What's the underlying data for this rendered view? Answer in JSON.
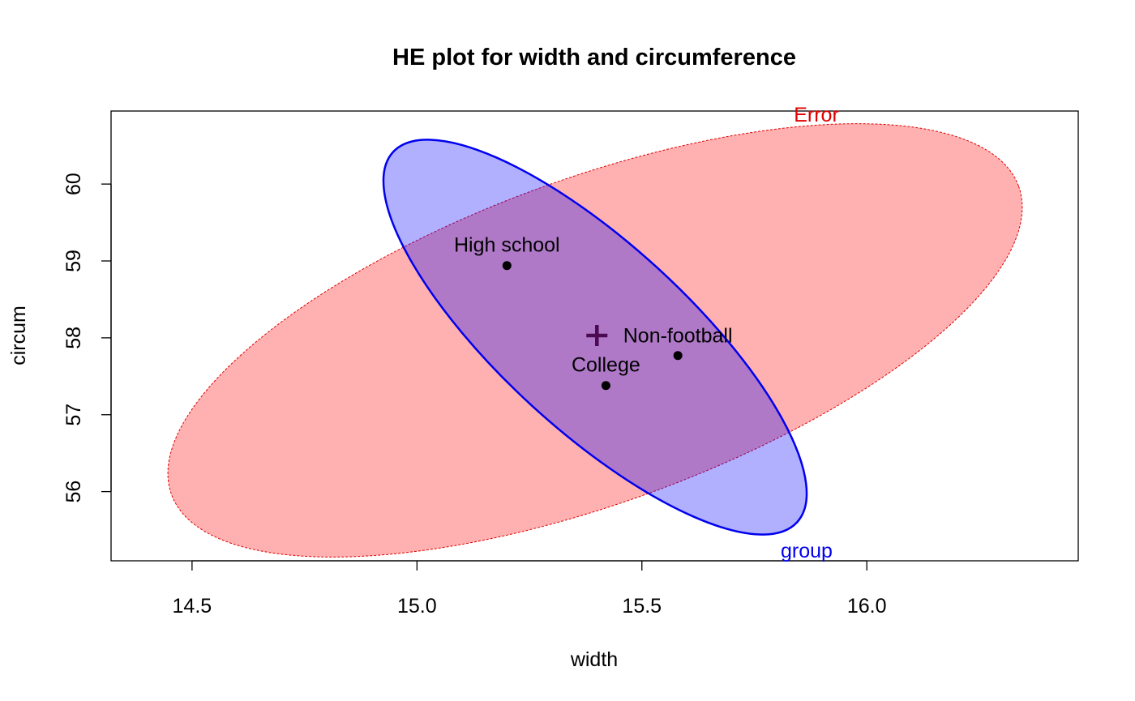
{
  "chart_data": {
    "type": "scatter",
    "title": "HE plot for width and circumference",
    "xlabel": "width",
    "ylabel": "circum",
    "xlim": [
      14.32,
      16.47
    ],
    "ylim": [
      55.1,
      60.95
    ],
    "x_ticks": [
      {
        "value": 14.5,
        "label": "14.5"
      },
      {
        "value": 15.0,
        "label": "15.0"
      },
      {
        "value": 15.5,
        "label": "15.5"
      },
      {
        "value": 16.0,
        "label": "16.0"
      }
    ],
    "y_ticks": [
      {
        "value": 56,
        "label": "56"
      },
      {
        "value": 57,
        "label": "57"
      },
      {
        "value": 58,
        "label": "58"
      },
      {
        "value": 59,
        "label": "59"
      },
      {
        "value": 60,
        "label": "60"
      }
    ],
    "grid": false,
    "points": [
      {
        "label": "High school",
        "x": 15.2,
        "y": 58.94
      },
      {
        "label": "Non-football",
        "x": 15.58,
        "y": 57.77
      },
      {
        "label": "College",
        "x": 15.42,
        "y": 57.38
      }
    ],
    "grand_mean": {
      "x": 15.4,
      "y": 58.03
    },
    "ellipses": [
      {
        "label": "Error",
        "center": {
          "x": 15.4,
          "y": 58.03
        },
        "fill_color": "#ff0000",
        "fill_opacity": 0.31,
        "stroke_color": "#e00000",
        "line_style": "dashed"
      },
      {
        "label": "group",
        "center": {
          "x": 15.4,
          "y": 58.03
        },
        "fill_color": "#0000ff",
        "fill_opacity": 0.31,
        "stroke_color": "#0000ee",
        "line_style": "solid"
      }
    ],
    "point_color": "#000000",
    "mean_marker_color": "#4b0a52"
  }
}
